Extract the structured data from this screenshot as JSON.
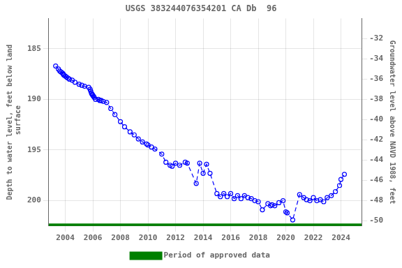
{
  "chart_data": {
    "type": "line",
    "title": "USGS 383244076354201 CA Db  96",
    "ylabel": "Depth to water level, feet below land\n surface",
    "y2label": "Groundwater level above NAVD 1988, feet",
    "x": [
      2003.3,
      2003.5,
      2003.6,
      2003.7,
      2003.8,
      2003.85,
      2003.9,
      2004.0,
      2004.1,
      2004.2,
      2004.3,
      2004.5,
      2004.7,
      2005.0,
      2005.2,
      2005.4,
      2005.7,
      2005.8,
      2005.85,
      2005.9,
      2005.95,
      2006.0,
      2006.05,
      2006.1,
      2006.2,
      2006.4,
      2006.5,
      2006.6,
      2006.75,
      2007.0,
      2007.3,
      2007.6,
      2008.0,
      2008.3,
      2008.7,
      2009.0,
      2009.3,
      2009.6,
      2009.9,
      2010.0,
      2010.25,
      2010.5,
      2011.0,
      2011.3,
      2011.6,
      2011.75,
      2012.0,
      2012.3,
      2012.7,
      2012.85,
      2013.5,
      2013.75,
      2014.0,
      2014.25,
      2014.5,
      2015.0,
      2015.25,
      2015.5,
      2015.75,
      2016.0,
      2016.25,
      2016.5,
      2016.75,
      2017.0,
      2017.25,
      2017.5,
      2017.75,
      2018.0,
      2018.3,
      2018.7,
      2018.9,
      2019.0,
      2019.2,
      2019.5,
      2019.8,
      2020.0,
      2020.1,
      2020.5,
      2021.0,
      2021.3,
      2021.5,
      2021.75,
      2022.0,
      2022.25,
      2022.5,
      2022.75,
      2023.0,
      2023.3,
      2023.6,
      2023.9,
      2024.0,
      2024.25
    ],
    "series": [
      {
        "color": "#0000ff",
        "line_style": "dashed",
        "marker": "circle",
        "values": [
          186.7,
          187.0,
          187.2,
          187.3,
          187.4,
          187.5,
          187.6,
          187.7,
          187.8,
          187.9,
          188.0,
          188.1,
          188.3,
          188.5,
          188.6,
          188.7,
          188.8,
          189.0,
          189.2,
          189.4,
          189.5,
          189.6,
          189.7,
          189.8,
          190.0,
          190.0,
          190.1,
          190.1,
          190.2,
          190.3,
          190.9,
          191.5,
          192.2,
          192.7,
          193.2,
          193.5,
          193.9,
          194.2,
          194.4,
          194.5,
          194.7,
          194.9,
          195.4,
          196.2,
          196.5,
          196.6,
          196.3,
          196.5,
          196.2,
          196.3,
          198.3,
          196.3,
          197.3,
          196.4,
          197.3,
          199.3,
          199.6,
          199.3,
          199.6,
          199.3,
          199.8,
          199.5,
          199.8,
          199.5,
          199.7,
          199.8,
          200.0,
          200.1,
          200.9,
          200.3,
          200.5,
          200.4,
          200.5,
          200.2,
          200.0,
          201.1,
          201.2,
          201.9,
          199.4,
          199.7,
          199.9,
          200.0,
          199.7,
          200.0,
          199.9,
          200.1,
          199.7,
          199.5,
          199.1,
          198.5,
          197.9,
          197.4
        ]
      },
      {
        "name": "Period of approved data",
        "color": "#008000",
        "line_style": "solid",
        "marker": "none",
        "x": [
          2002.8,
          2025.5
        ],
        "values": [
          202.5,
          202.5
        ]
      }
    ],
    "xlim": [
      2002.8,
      2025.5
    ],
    "xticks": [
      2004,
      2006,
      2008,
      2010,
      2012,
      2014,
      2016,
      2018,
      2020,
      2022,
      2024
    ],
    "ylim": [
      202.5,
      182.0
    ],
    "yticks": [
      185,
      190,
      195,
      200
    ],
    "y2lim": [
      -50.5,
      -30.0
    ],
    "y2ticks": [
      -32,
      -34,
      -36,
      -38,
      -40,
      -42,
      -44,
      -46,
      -48,
      -50
    ],
    "grid": true,
    "legend": "bottom"
  }
}
